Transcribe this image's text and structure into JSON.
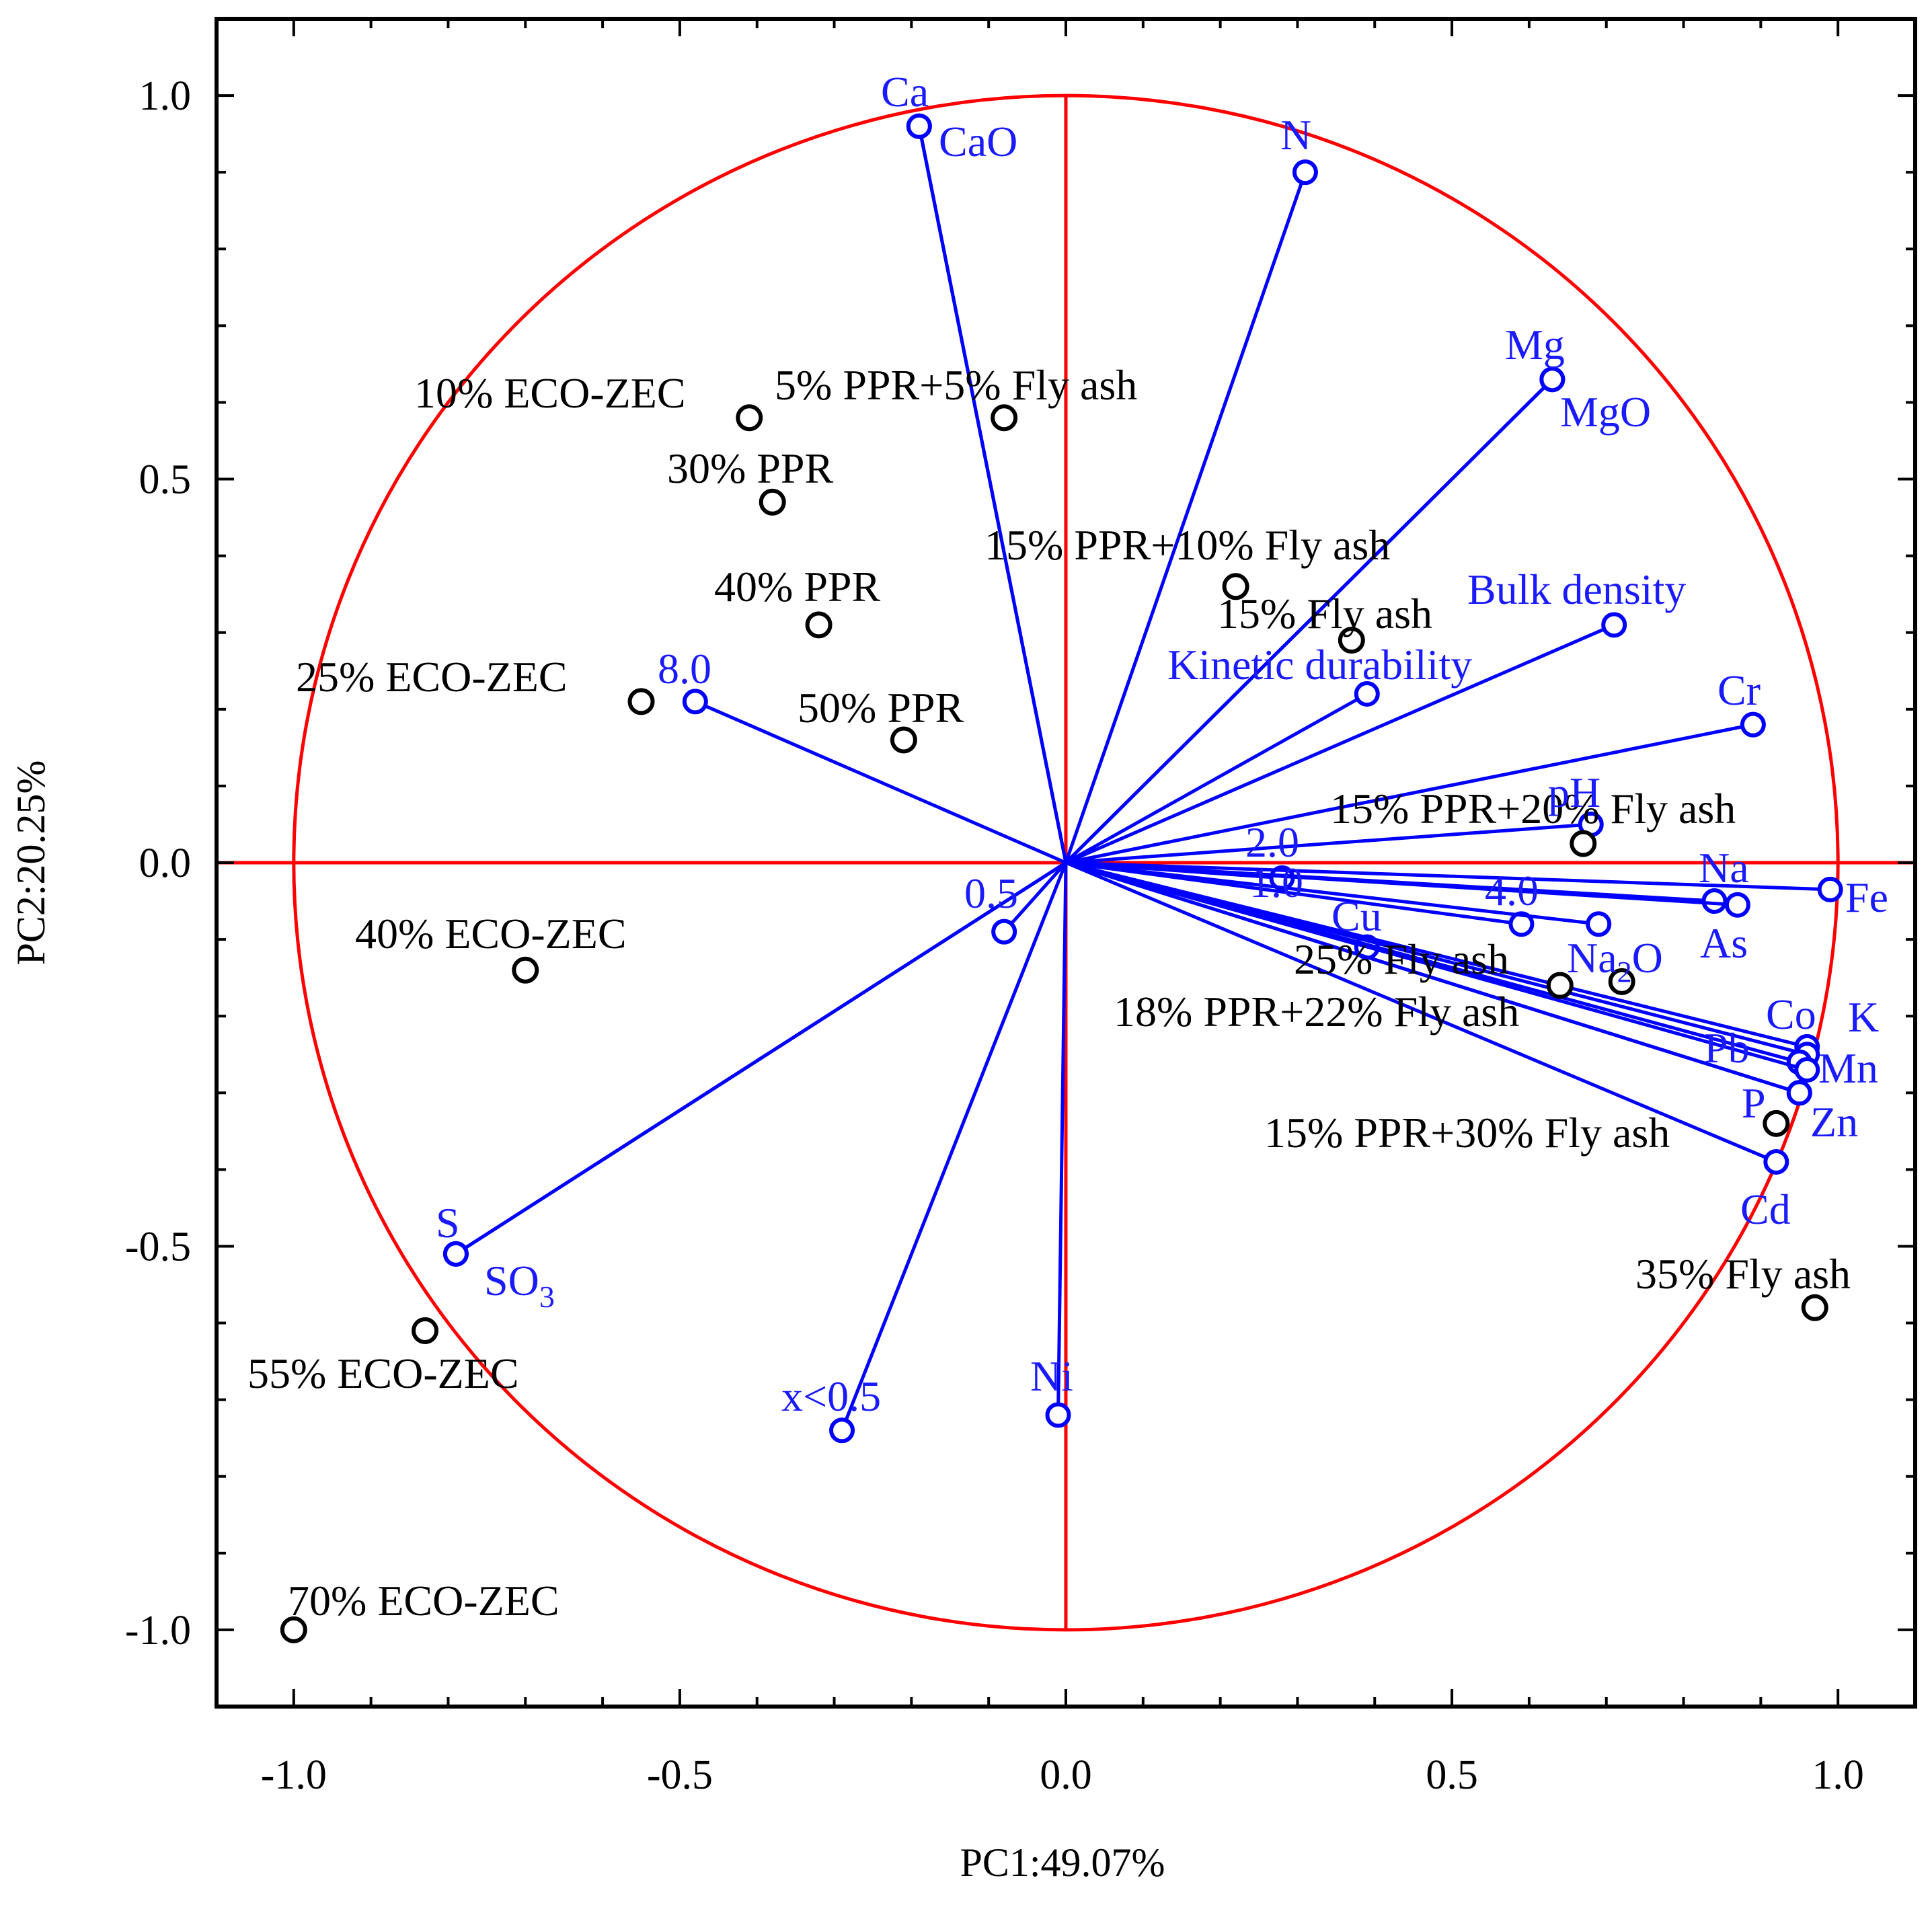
{
  "colors": {
    "variable": "#0000ff",
    "variable_text": "#1a1aff",
    "circle": "#ff0000",
    "sample": "#000000"
  },
  "chart_data": {
    "type": "scatter",
    "subtype": "pca-biplot",
    "xlabel": "PC1:49.07%",
    "ylabel": "PC2:20.25%",
    "xlim": [
      -1.1,
      1.1
    ],
    "ylim": [
      -1.1,
      1.1
    ],
    "xticks": [
      -1.0,
      -0.5,
      0.0,
      0.5,
      1.0
    ],
    "yticks": [
      -1.0,
      -0.5,
      0.0,
      0.5,
      1.0
    ],
    "xtick_labels": [
      "-1.0",
      "-0.5",
      "0.0",
      "0.5",
      "1.0"
    ],
    "ytick_labels": [
      "-1.0",
      "-0.5",
      "0.0",
      "0.5",
      "1.0"
    ],
    "unit_circle": true,
    "samples": [
      {
        "name": "10% ECO-ZEC",
        "x": -0.41,
        "y": 0.58
      },
      {
        "name": "5% PPR+5% Fly ash",
        "x": -0.08,
        "y": 0.58
      },
      {
        "name": "30% PPR",
        "x": -0.38,
        "y": 0.47
      },
      {
        "name": "40% PPR",
        "x": -0.32,
        "y": 0.31
      },
      {
        "name": "25% ECO-ZEC",
        "x": -0.55,
        "y": 0.21
      },
      {
        "name": "50% PPR",
        "x": -0.21,
        "y": 0.16
      },
      {
        "name": "15% PPR+10% Fly ash",
        "x": 0.22,
        "y": 0.36
      },
      {
        "name": "15% Fly ash",
        "x": 0.37,
        "y": 0.29
      },
      {
        "name": "15% PPR+20% Fly ash",
        "x": 0.67,
        "y": 0.025
      },
      {
        "name": "25% Fly ash",
        "x": 0.64,
        "y": -0.16
      },
      {
        "name": "18% PPR+22% Fly ash",
        "x": 0.72,
        "y": -0.155
      },
      {
        "name": "15% PPR+30% Fly ash",
        "x": 0.92,
        "y": -0.34
      },
      {
        "name": "35% Fly ash",
        "x": 0.97,
        "y": -0.58
      },
      {
        "name": "40% ECO-ZEC",
        "x": -0.7,
        "y": -0.14
      },
      {
        "name": "55% ECO-ZEC",
        "x": -0.83,
        "y": -0.61
      },
      {
        "name": "70% ECO-ZEC",
        "x": -1.0,
        "y": -1.0
      }
    ],
    "variables": [
      {
        "name": "Ca",
        "x": -0.19,
        "y": 0.96
      },
      {
        "name": "CaO",
        "x": -0.19,
        "y": 0.96
      },
      {
        "name": "N",
        "x": 0.31,
        "y": 0.9
      },
      {
        "name": "Mg",
        "x": 0.63,
        "y": 0.63
      },
      {
        "name": "MgO",
        "x": 0.63,
        "y": 0.63
      },
      {
        "name": "Bulk density",
        "x": 0.71,
        "y": 0.31
      },
      {
        "name": "Kinetic durability",
        "x": 0.39,
        "y": 0.22
      },
      {
        "name": "Cr",
        "x": 0.89,
        "y": 0.18
      },
      {
        "name": "pH",
        "x": 0.68,
        "y": 0.05
      },
      {
        "name": "2.0",
        "x": 0.28,
        "y": -0.02
      },
      {
        "name": "4.0",
        "x": 0.59,
        "y": -0.08
      },
      {
        "name": "Na",
        "x": 0.84,
        "y": -0.05
      },
      {
        "name": "As",
        "x": 0.87,
        "y": -0.055
      },
      {
        "name": "Fe",
        "x": 0.99,
        "y": -0.035
      },
      {
        "name": "Cu",
        "x": 0.39,
        "y": -0.11
      },
      {
        "name": "Na2O",
        "x": 0.69,
        "y": -0.08
      },
      {
        "name": "Co",
        "x": 0.96,
        "y": -0.24
      },
      {
        "name": "K",
        "x": 0.96,
        "y": -0.25
      },
      {
        "name": "Pb",
        "x": 0.95,
        "y": -0.26
      },
      {
        "name": "Mn",
        "x": 0.96,
        "y": -0.27
      },
      {
        "name": "P",
        "x": 0.95,
        "y": -0.3
      },
      {
        "name": "Zn",
        "x": 0.95,
        "y": -0.3
      },
      {
        "name": "Cd",
        "x": 0.92,
        "y": -0.39
      },
      {
        "name": "8.0",
        "x": -0.48,
        "y": 0.21
      },
      {
        "name": "0.5",
        "x": -0.08,
        "y": -0.09
      },
      {
        "name": "S",
        "x": -0.79,
        "y": -0.51
      },
      {
        "name": "SO3",
        "x": -0.79,
        "y": -0.51
      },
      {
        "name": "x<0.5",
        "x": -0.29,
        "y": -0.74
      },
      {
        "name": "Ni",
        "x": -0.01,
        "y": -0.72
      }
    ],
    "vector_labels": {
      "Ca": "Ca",
      "CaO": "CaO",
      "N": "N",
      "Mg": "Mg",
      "MgO": "MgO",
      "Bulk density": "Bulk density",
      "Kinetic durability": "Kinetic durability",
      "Cr": "Cr",
      "pH": "pH",
      "2.0": "2.0",
      "4.0": "4.0",
      "Na": "Na",
      "As": "As",
      "Fe": "Fe",
      "Cu": "Cu",
      "Na2O_main": "Na",
      "Na2O_sub": "2",
      "Na2O_end": "O",
      "Co": "Co",
      "K": "K",
      "Pb": "Pb",
      "Mn": "Mn",
      "P": "P",
      "Zn": "Zn",
      "Cd": "Cd",
      "8.0": "8.0",
      "0.5": "0.5",
      "S": "S",
      "SO3_main": "SO",
      "SO3_sub": "3",
      "x<0.5": "x<0.5",
      "Ni": "Ni",
      "1.0_fragment": "1.0"
    }
  }
}
